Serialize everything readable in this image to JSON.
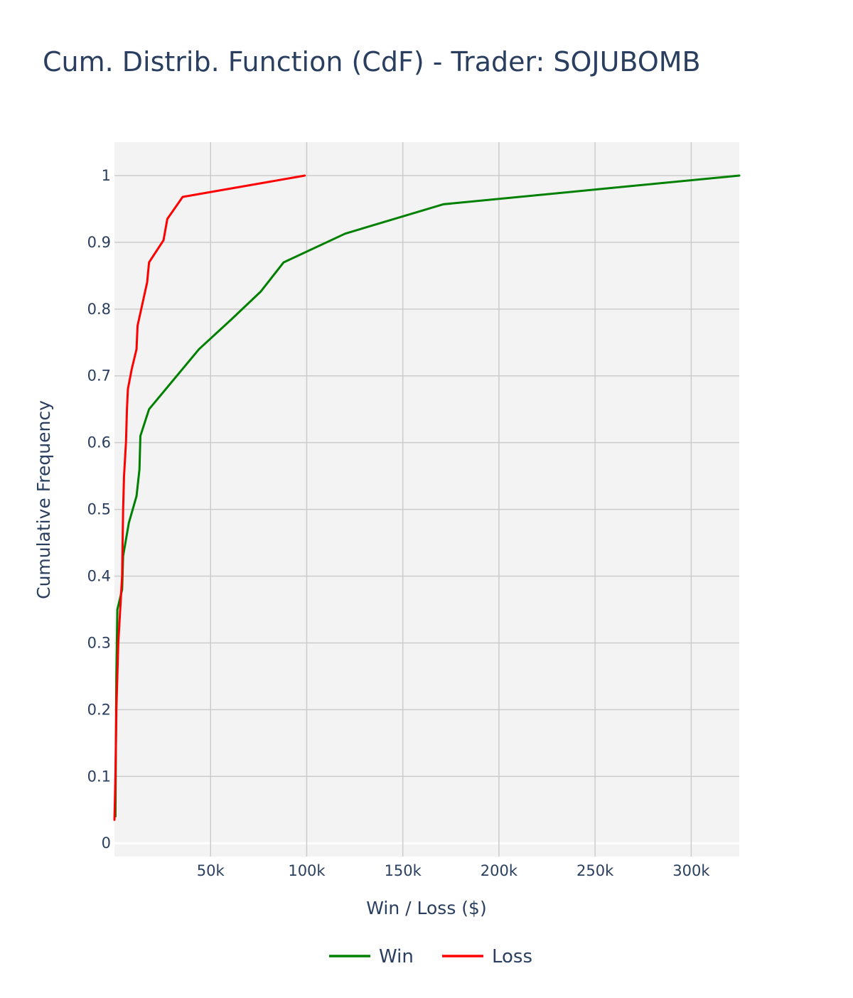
{
  "chart_data": {
    "type": "line",
    "title": "Cum. Distrib. Function (CdF) - Trader: SOJUBOMB",
    "xlabel": "Win / Loss ($)",
    "ylabel": "Cumulative Frequency",
    "xlim": [
      0,
      325000
    ],
    "ylim": [
      -0.02,
      1.05
    ],
    "x_ticks": [
      {
        "value": 50000,
        "label": "50k"
      },
      {
        "value": 100000,
        "label": "100k"
      },
      {
        "value": 150000,
        "label": "150k"
      },
      {
        "value": 200000,
        "label": "200k"
      },
      {
        "value": 250000,
        "label": "250k"
      },
      {
        "value": 300000,
        "label": "300k"
      }
    ],
    "y_ticks": [
      {
        "value": 0,
        "label": "0"
      },
      {
        "value": 0.1,
        "label": "0.1"
      },
      {
        "value": 0.2,
        "label": "0.2"
      },
      {
        "value": 0.3,
        "label": "0.3"
      },
      {
        "value": 0.4,
        "label": "0.4"
      },
      {
        "value": 0.5,
        "label": "0.5"
      },
      {
        "value": 0.6,
        "label": "0.6"
      },
      {
        "value": 0.7,
        "label": "0.7"
      },
      {
        "value": 0.8,
        "label": "0.8"
      },
      {
        "value": 0.9,
        "label": "0.9"
      },
      {
        "value": 1,
        "label": "1"
      }
    ],
    "grid": true,
    "legend_position": "bottom-center",
    "series": [
      {
        "name": "Win",
        "color": "#008000",
        "points": [
          [
            500,
            0.04
          ],
          [
            1000,
            0.25
          ],
          [
            1500,
            0.35
          ],
          [
            4000,
            0.38
          ],
          [
            4500,
            0.43
          ],
          [
            7500,
            0.48
          ],
          [
            11500,
            0.52
          ],
          [
            13000,
            0.56
          ],
          [
            13500,
            0.61
          ],
          [
            18000,
            0.65
          ],
          [
            44000,
            0.74
          ],
          [
            61000,
            0.785
          ],
          [
            76000,
            0.826
          ],
          [
            88000,
            0.87
          ],
          [
            120000,
            0.913
          ],
          [
            171000,
            0.957
          ],
          [
            325000,
            1.0
          ]
        ]
      },
      {
        "name": "Loss",
        "color": "#ff0000",
        "points": [
          [
            0,
            0.035
          ],
          [
            500,
            0.1
          ],
          [
            1000,
            0.2
          ],
          [
            2000,
            0.3
          ],
          [
            3000,
            0.35
          ],
          [
            4000,
            0.4
          ],
          [
            4500,
            0.5
          ],
          [
            5000,
            0.55
          ],
          [
            6000,
            0.6
          ],
          [
            6500,
            0.65
          ],
          [
            7000,
            0.68
          ],
          [
            9000,
            0.71
          ],
          [
            11500,
            0.74
          ],
          [
            12000,
            0.775
          ],
          [
            17000,
            0.84
          ],
          [
            18000,
            0.87
          ],
          [
            25500,
            0.903
          ],
          [
            27500,
            0.935
          ],
          [
            35500,
            0.968
          ],
          [
            99000,
            1.0
          ]
        ]
      }
    ]
  }
}
